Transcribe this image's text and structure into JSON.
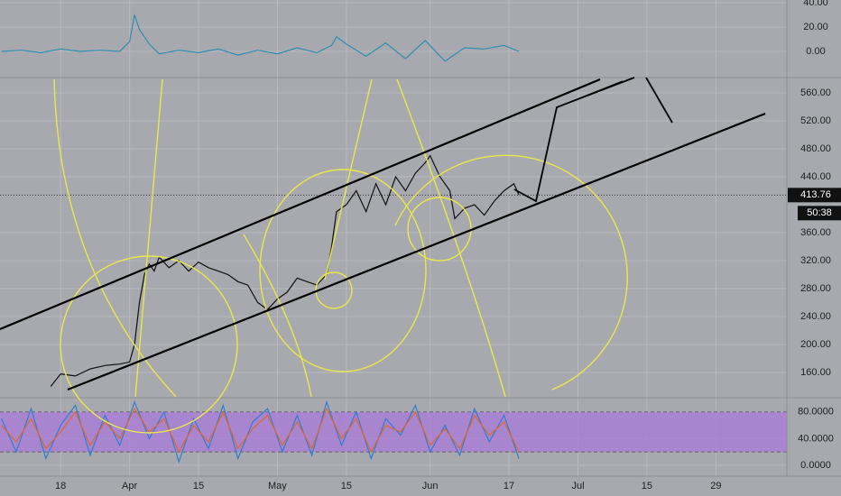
{
  "chart_data": [
    {
      "type": "line",
      "x": [
        -12,
        -8,
        -4,
        0,
        4,
        8,
        12,
        14,
        15,
        16,
        18,
        20,
        24,
        28,
        32,
        36,
        40,
        44,
        48,
        52,
        55,
        56,
        58,
        62,
        66,
        70,
        74,
        78,
        82,
        86,
        90,
        93
      ],
      "series": [
        {
          "color": "#2f8fb0",
          "values": [
            0,
            1,
            -1,
            2,
            0,
            1,
            0,
            8,
            30,
            18,
            6,
            -2,
            1,
            -1,
            2,
            -3,
            1,
            -2,
            3,
            -1,
            5,
            12,
            6,
            -4,
            7,
            -6,
            9,
            -8,
            3,
            2,
            5,
            0
          ]
        }
      ],
      "xlim": [
        -12.3,
        147.4
      ],
      "ylim": [
        -20.7,
        42.2
      ],
      "yticks": [
        {
          "value": 0,
          "label": "0.00"
        },
        {
          "value": 20,
          "label": "20.00"
        },
        {
          "value": 40,
          "label": "40.00"
        }
      ],
      "grid": true
    },
    {
      "type": "line",
      "x": [
        -2,
        0,
        3,
        6,
        9,
        12,
        14,
        15,
        16,
        17,
        18,
        19,
        20,
        22,
        24,
        26,
        28,
        30,
        32,
        34,
        36,
        38,
        40,
        42,
        44,
        46,
        48,
        50,
        52,
        54,
        55,
        56,
        58,
        60,
        62,
        64,
        66,
        68,
        70,
        72,
        74,
        75,
        77,
        79,
        80,
        82,
        84,
        86,
        88,
        90,
        92,
        93
      ],
      "series": [
        {
          "color": "#111111",
          "values": [
            140,
            158,
            155,
            165,
            170,
            172,
            175,
            200,
            260,
            300,
            315,
            305,
            325,
            310,
            320,
            305,
            318,
            310,
            305,
            300,
            290,
            285,
            260,
            250,
            265,
            275,
            295,
            290,
            285,
            300,
            340,
            390,
            400,
            420,
            390,
            430,
            400,
            440,
            420,
            445,
            460,
            470,
            440,
            420,
            380,
            395,
            400,
            385,
            405,
            420,
            430,
            414
          ]
        }
      ],
      "xlim": [
        -12.3,
        147.4
      ],
      "ylim": [
        125.2,
        580.6
      ],
      "xticks": [
        {
          "value": 0,
          "label": "18"
        },
        {
          "value": 14,
          "label": "Apr"
        },
        {
          "value": 28,
          "label": "15"
        },
        {
          "value": 44,
          "label": "May"
        },
        {
          "value": 58,
          "label": "15"
        },
        {
          "value": 75,
          "label": "Jun"
        },
        {
          "value": 91,
          "label": "17"
        },
        {
          "value": 105,
          "label": "Jul"
        },
        {
          "value": 119,
          "label": "15"
        },
        {
          "value": 133,
          "label": "29"
        }
      ],
      "yticks": [
        {
          "value": 160,
          "label": "160.00"
        },
        {
          "value": 200,
          "label": "200.00"
        },
        {
          "value": 240,
          "label": "240.00"
        },
        {
          "value": 280,
          "label": "280.00"
        },
        {
          "value": 320,
          "label": "320.00"
        },
        {
          "value": 360,
          "label": "360.00"
        },
        {
          "value": 440,
          "label": "440.00"
        },
        {
          "value": 480,
          "label": "480.00"
        },
        {
          "value": 520,
          "label": "520.00"
        },
        {
          "value": 560,
          "label": "560.00"
        }
      ],
      "last_price": 413.76,
      "countdown": "50:38",
      "grid": true
    },
    {
      "type": "line",
      "x": [
        -12,
        -9,
        -6,
        -3,
        0,
        3,
        6,
        9,
        12,
        15,
        18,
        21,
        24,
        27,
        30,
        33,
        36,
        39,
        42,
        45,
        48,
        51,
        54,
        57,
        60,
        63,
        66,
        69,
        72,
        75,
        78,
        81,
        84,
        87,
        90,
        93
      ],
      "series": [
        {
          "color": "#2f7fd0",
          "values": [
            70,
            20,
            85,
            10,
            60,
            90,
            15,
            75,
            30,
            95,
            40,
            80,
            5,
            70,
            25,
            90,
            10,
            65,
            85,
            20,
            75,
            15,
            95,
            30,
            80,
            10,
            70,
            45,
            90,
            20,
            60,
            15,
            85,
            35,
            75,
            10
          ]
        },
        {
          "color": "#e0662a",
          "values": [
            60,
            35,
            70,
            25,
            50,
            80,
            30,
            65,
            40,
            85,
            50,
            70,
            20,
            60,
            35,
            80,
            25,
            55,
            75,
            30,
            65,
            25,
            85,
            40,
            70,
            20,
            60,
            50,
            80,
            30,
            55,
            25,
            75,
            45,
            65,
            20
          ]
        }
      ],
      "xlim": [
        -12.3,
        147.4
      ],
      "ylim": [
        -15,
        100
      ],
      "yticks": [
        {
          "value": 0,
          "label": "0.0000"
        },
        {
          "value": 40,
          "label": "40.0000"
        },
        {
          "value": 80,
          "label": "80.0000"
        }
      ],
      "band": [
        20,
        80
      ],
      "band_color": "#a97fd6",
      "grid": true
    }
  ]
}
